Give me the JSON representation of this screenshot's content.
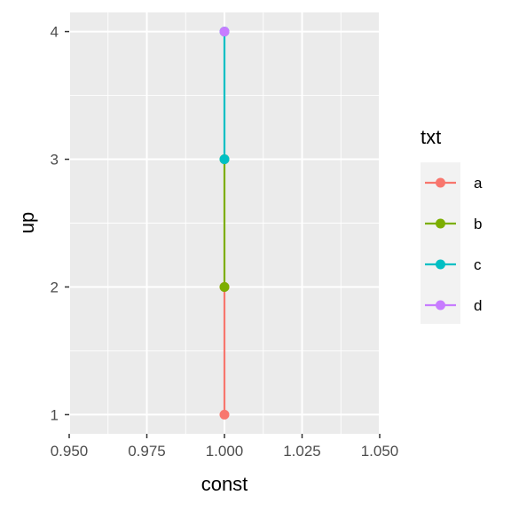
{
  "chart_data": {
    "type": "line",
    "xlabel": "const",
    "ylabel": "up",
    "xlim": [
      0.95,
      1.05
    ],
    "ylim": [
      0.85,
      4.15
    ],
    "x_ticks": [
      "0.950",
      "0.975",
      "1.000",
      "1.025",
      "1.050"
    ],
    "x_tick_values": [
      0.95,
      0.975,
      1.0,
      1.025,
      1.05
    ],
    "y_ticks": [
      "1",
      "2",
      "3",
      "4"
    ],
    "y_tick_values": [
      1,
      2,
      3,
      4
    ],
    "grid": true,
    "legend": {
      "title": "txt",
      "position": "right",
      "entries": [
        "a",
        "b",
        "c",
        "d"
      ]
    },
    "series": [
      {
        "name": "a",
        "color": "#F8766D",
        "x": [
          1.0,
          1.0
        ],
        "y": [
          1,
          2
        ]
      },
      {
        "name": "b",
        "color": "#7CAE00",
        "x": [
          1.0,
          1.0
        ],
        "y": [
          2,
          3
        ]
      },
      {
        "name": "c",
        "color": "#00BFC4",
        "x": [
          1.0,
          1.0
        ],
        "y": [
          3,
          4
        ]
      },
      {
        "name": "d",
        "color": "#C77CFF",
        "x": [
          1.0
        ],
        "y": [
          4
        ]
      }
    ]
  }
}
